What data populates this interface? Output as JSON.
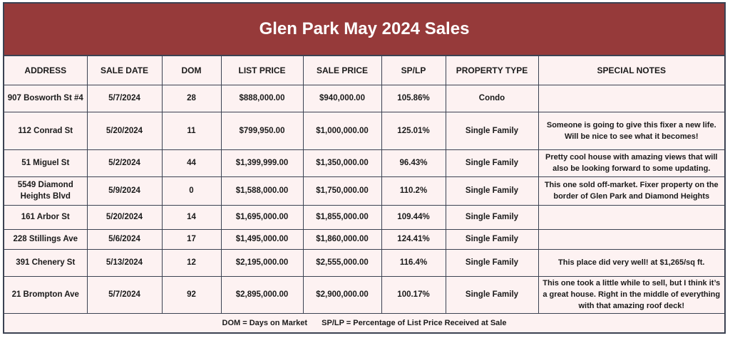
{
  "title": "Glen Park May 2024 Sales",
  "columns": [
    "ADDRESS",
    "SALE DATE",
    "DOM",
    "LIST PRICE",
    "SALE PRICE",
    "SP/LP",
    "PROPERTY TYPE",
    "SPECIAL NOTES"
  ],
  "rows": [
    {
      "address": "907 Bosworth St #4",
      "sale_date": "5/7/2024",
      "dom": "28",
      "list_price": "$888,000.00",
      "sale_price": "$940,000.00",
      "sp_lp": "105.86%",
      "property_type": "Condo",
      "notes": ""
    },
    {
      "address": "112 Conrad St",
      "sale_date": "5/20/2024",
      "dom": "11",
      "list_price": "$799,950.00",
      "sale_price": "$1,000,000.00",
      "sp_lp": "125.01%",
      "property_type": "Single Family",
      "notes": "Someone is going to give this fixer a new life. Will be nice to see what it becomes!"
    },
    {
      "address": "51 Miguel St",
      "sale_date": "5/2/2024",
      "dom": "44",
      "list_price": "$1,399,999.00",
      "sale_price": "$1,350,000.00",
      "sp_lp": "96.43%",
      "property_type": "Single Family",
      "notes": "Pretty cool house with amazing views that will also be looking forward to some updating."
    },
    {
      "address": "5549 Diamond Heights Blvd",
      "sale_date": "5/9/2024",
      "dom": "0",
      "list_price": "$1,588,000.00",
      "sale_price": "$1,750,000.00",
      "sp_lp": "110.2%",
      "property_type": "Single Family",
      "notes": "This one sold off-market. Fixer property on the border of Glen Park and Diamond Heights"
    },
    {
      "address": "161 Arbor St",
      "sale_date": "5/20/2024",
      "dom": "14",
      "list_price": "$1,695,000.00",
      "sale_price": "$1,855,000.00",
      "sp_lp": "109.44%",
      "property_type": "Single Family",
      "notes": ""
    },
    {
      "address": "228 Stillings Ave",
      "sale_date": "5/6/2024",
      "dom": "17",
      "list_price": "$1,495,000.00",
      "sale_price": "$1,860,000.00",
      "sp_lp": "124.41%",
      "property_type": "Single Family",
      "notes": ""
    },
    {
      "address": "391 Chenery St",
      "sale_date": "5/13/2024",
      "dom": "12",
      "list_price": "$2,195,000.00",
      "sale_price": "$2,555,000.00",
      "sp_lp": "116.4%",
      "property_type": "Single Family",
      "notes": "This place did very well! at $1,265/sq ft."
    },
    {
      "address": "21 Brompton Ave",
      "sale_date": "5/7/2024",
      "dom": "92",
      "list_price": "$2,895,000.00",
      "sale_price": "$2,900,000.00",
      "sp_lp": "100.17%",
      "property_type": "Single Family",
      "notes": "This one took a little while to sell, but I think it’s a great house. Right in the middle of everything with that amazing roof deck!"
    }
  ],
  "footer": {
    "dom_legend": "DOM = Days on Market",
    "splp_legend": "SP/LP = Percentage of List Price Received at Sale"
  }
}
